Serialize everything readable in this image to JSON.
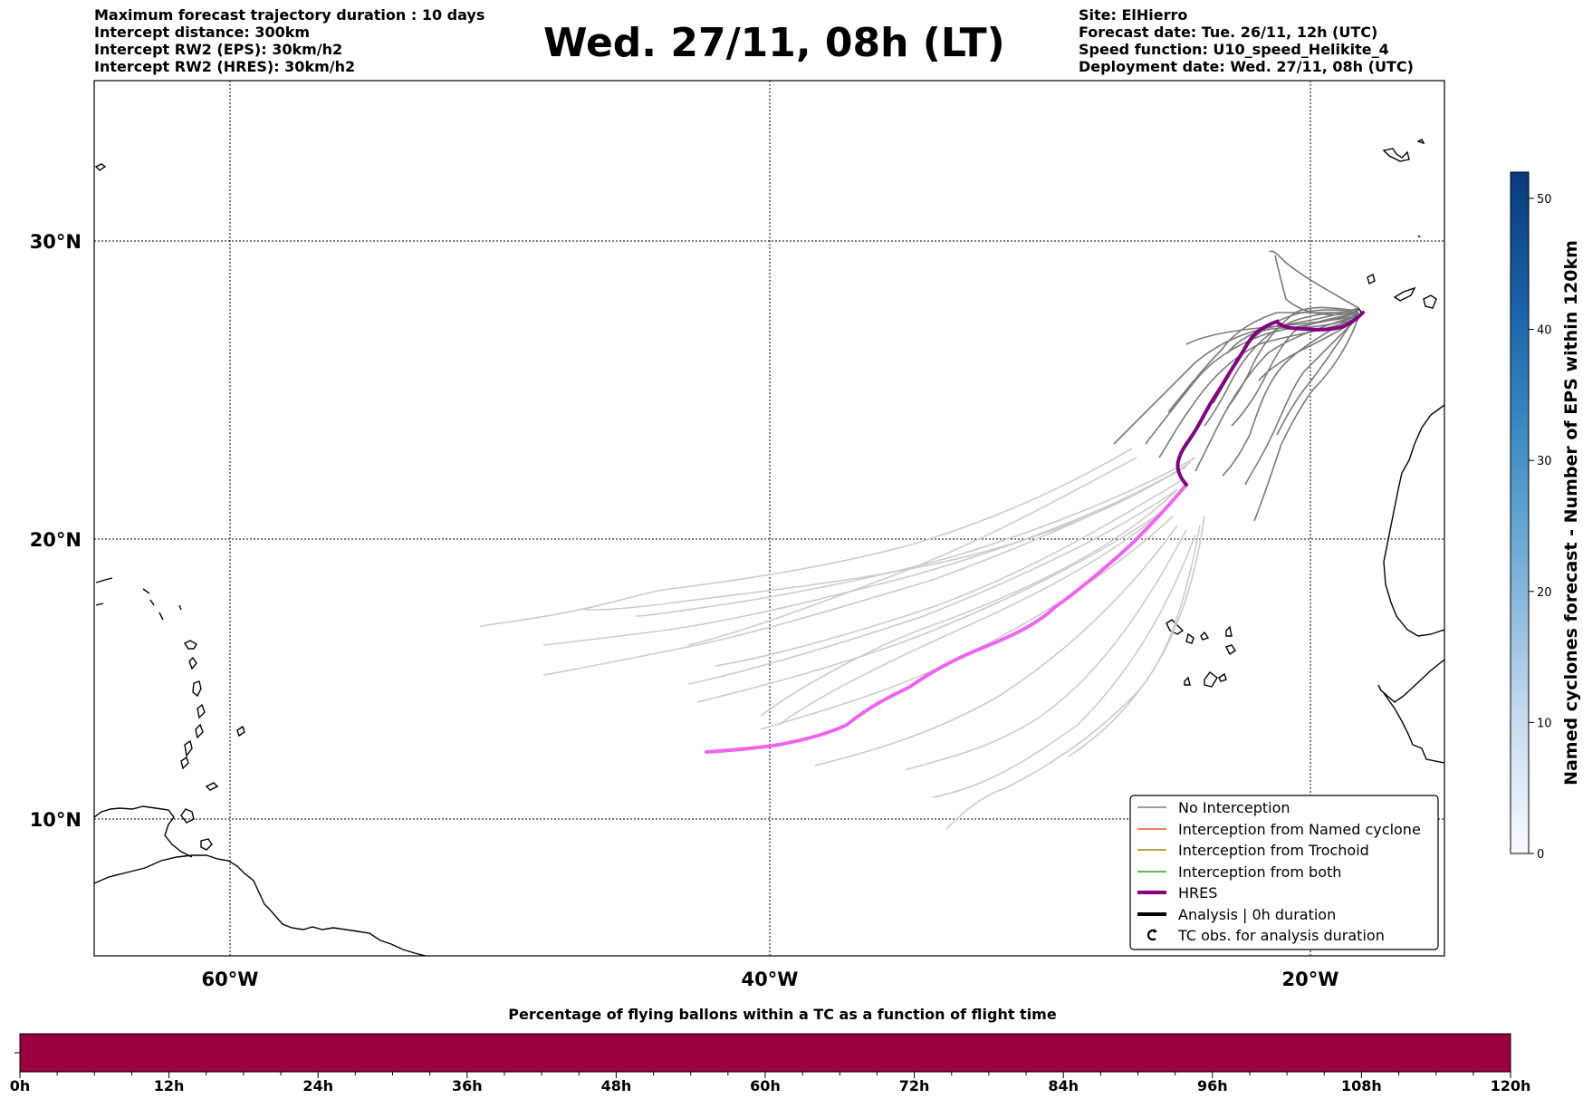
{
  "header": {
    "left_lines": [
      "Maximum forecast trajectory duration : 10 days",
      "Intercept distance: 300km",
      "Intercept RW2 (EPS):  30km/h2",
      "Intercept RW2 (HRES): 30km/h2"
    ],
    "title": "Wed. 27/11, 08h (LT)",
    "right_lines": [
      "Site: ElHierro",
      "Forecast date: Tue. 26/11, 12h (UTC)",
      "Speed function: U10_speed_Helikite_4",
      "Deployment date: Wed. 27/11, 08h (UTC)"
    ]
  },
  "map": {
    "lat_labels": [
      "30°N",
      "20°N",
      "10°N"
    ],
    "lon_labels": [
      "60°W",
      "40°W",
      "20°W"
    ],
    "gridlines": "dotted",
    "colors": {
      "no_interception_recent": "#7a7a7a",
      "no_interception_old": "#cccccc",
      "hres_recent": "#800080",
      "hres_old": "#ee66ee",
      "coast": "#000000"
    }
  },
  "legend": {
    "placement": "lower-right",
    "items": [
      {
        "label": "No Interception",
        "color": "#808080",
        "style": "thin"
      },
      {
        "label": "Interception from Named cyclone",
        "color": "#e8502a",
        "style": "thin"
      },
      {
        "label": "Interception from Trochoid",
        "color": "#8c8c14",
        "style": "thin"
      },
      {
        "label": "Interception from both",
        "color": "#2ca02c",
        "style": "thin"
      },
      {
        "label": "HRES",
        "color": "#800080",
        "style": "thick"
      },
      {
        "label": "Analysis | 0h duration",
        "color": "#000000",
        "style": "thick"
      },
      {
        "label": "TC obs. for analysis duration",
        "color": "#000000",
        "style": "marker",
        "icon": "cyclone-symbol-icon"
      }
    ]
  },
  "colorbar": {
    "label": "Named cyclones forecast - Number of EPS within 120km",
    "ticks": [
      "0",
      "10",
      "20",
      "30",
      "40",
      "50"
    ],
    "max": 52,
    "colormap": "Blues"
  },
  "bottom_bar": {
    "title": "Percentage of flying ballons within a TC as a function of flight time",
    "ticks": [
      "0h",
      "12h",
      "24h",
      "36h",
      "48h",
      "60h",
      "72h",
      "84h",
      "96h",
      "108h",
      "120h"
    ],
    "fill_color": "#99003d",
    "percent_by_hour": []
  }
}
